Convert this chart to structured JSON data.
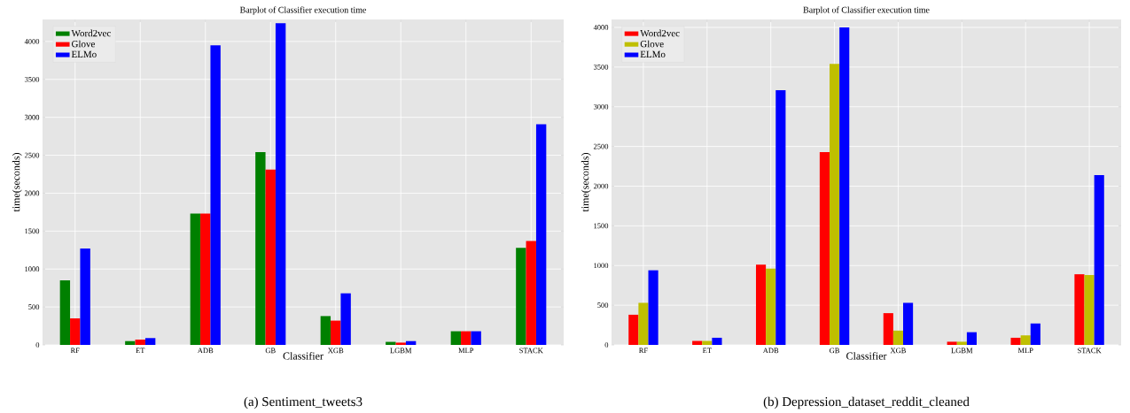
{
  "chart_data": [
    {
      "type": "bar",
      "title": "Barplot of Classifier execution time",
      "xlabel": "Classifier",
      "ylabel": "time(seconds)",
      "categories": [
        "RF",
        "ET",
        "ADB",
        "GB",
        "XGB",
        "LGBM",
        "MLP",
        "STACK"
      ],
      "series": [
        {
          "name": "Word2vec",
          "color": "#008000",
          "values": [
            850,
            50,
            1730,
            2540,
            380,
            40,
            180,
            1280
          ]
        },
        {
          "name": "Glove",
          "color": "#ff0000",
          "values": [
            350,
            70,
            1730,
            2310,
            320,
            30,
            180,
            1370
          ]
        },
        {
          "name": "ELMo",
          "color": "#0000ff",
          "values": [
            1270,
            90,
            3950,
            4240,
            680,
            50,
            180,
            2910
          ]
        }
      ],
      "ylim": [
        0,
        4290
      ],
      "yticks": [
        0,
        500,
        1000,
        1500,
        2000,
        2500,
        3000,
        3500,
        4000
      ],
      "grid": true,
      "legend": "top left",
      "annotations": [
        "(a) Sentiment_tweets3"
      ]
    },
    {
      "type": "bar",
      "title": "Barplot of Classifier execution time",
      "xlabel": "Classifier",
      "ylabel": "time(seconds)",
      "categories": [
        "RF",
        "ET",
        "ADB",
        "GB",
        "XGB",
        "LGBM",
        "MLP",
        "STACK"
      ],
      "series": [
        {
          "name": "Word2vec",
          "color": "#ff0000",
          "values": [
            380,
            50,
            1010,
            2430,
            400,
            40,
            90,
            890
          ]
        },
        {
          "name": "Glove",
          "color": "#bfbf00",
          "values": [
            530,
            50,
            960,
            3540,
            180,
            40,
            120,
            880
          ]
        },
        {
          "name": "ELMo",
          "color": "#0000ff",
          "values": [
            940,
            90,
            3210,
            4000,
            530,
            160,
            270,
            2140
          ]
        }
      ],
      "ylim": [
        0,
        4100
      ],
      "yticks": [
        0,
        500,
        1000,
        1500,
        2000,
        2500,
        3000,
        3500,
        4000
      ],
      "grid": true,
      "legend": "top left",
      "annotations": [
        "(b) Depression_dataset_reddit_cleaned"
      ]
    }
  ]
}
